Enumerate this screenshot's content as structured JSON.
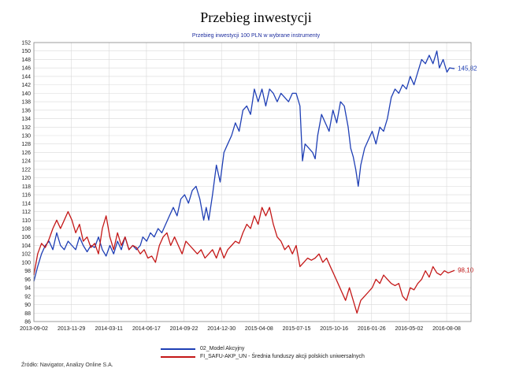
{
  "title": "Przebieg inwestycji",
  "subtitle": "Przebieg inwestycji 100 PLN w wybrane instrumenty",
  "source": "Źródło: Navigator, Analizy Online S.A.",
  "chart_data": {
    "type": "line",
    "x_tick_labels": [
      "2013-09-02",
      "2013-11-29",
      "2014-03-11",
      "2014-06-17",
      "2014-09-22",
      "2014-12-30",
      "2015-04-08",
      "2015-07-15",
      "2015-10-16",
      "2016-01-26",
      "2016-05-02",
      "2016-08-08"
    ],
    "ylim": [
      86,
      152
    ],
    "y_ticks": [
      86,
      88,
      90,
      92,
      94,
      96,
      98,
      100,
      102,
      104,
      106,
      108,
      110,
      112,
      114,
      116,
      118,
      120,
      122,
      124,
      126,
      128,
      130,
      132,
      134,
      136,
      138,
      140,
      142,
      144,
      146,
      148,
      150,
      152
    ],
    "grid": true,
    "legend_position": "bottom",
    "series": [
      {
        "name": "02_Model Akcyjny",
        "color": "#1f3fb5",
        "end_label": "145,82",
        "values": [
          [
            0,
            95.5
          ],
          [
            3,
            99
          ],
          [
            6,
            102
          ],
          [
            9,
            104
          ],
          [
            12,
            105
          ],
          [
            15,
            103
          ],
          [
            18,
            107
          ],
          [
            21,
            104
          ],
          [
            24,
            103
          ],
          [
            27,
            105
          ],
          [
            30,
            104
          ],
          [
            33,
            103
          ],
          [
            36,
            106
          ],
          [
            39,
            104
          ],
          [
            42,
            102.5
          ],
          [
            45,
            104
          ],
          [
            48,
            103.5
          ],
          [
            51,
            106
          ],
          [
            54,
            103
          ],
          [
            57,
            101.5
          ],
          [
            60,
            104
          ],
          [
            63,
            102
          ],
          [
            66,
            105
          ],
          [
            69,
            103
          ],
          [
            72,
            106
          ],
          [
            75,
            103
          ],
          [
            78,
            104
          ],
          [
            81,
            103
          ],
          [
            84,
            104
          ],
          [
            86,
            106
          ],
          [
            89,
            105
          ],
          [
            92,
            107
          ],
          [
            95,
            106
          ],
          [
            98,
            108
          ],
          [
            101,
            107
          ],
          [
            104,
            109
          ],
          [
            107,
            111
          ],
          [
            110,
            113
          ],
          [
            113,
            111
          ],
          [
            116,
            115
          ],
          [
            119,
            116
          ],
          [
            122,
            114
          ],
          [
            125,
            117
          ],
          [
            128,
            118
          ],
          [
            131,
            115
          ],
          [
            134,
            110
          ],
          [
            136,
            113
          ],
          [
            138,
            110
          ],
          [
            141,
            116
          ],
          [
            144,
            123
          ],
          [
            147,
            119
          ],
          [
            150,
            126
          ],
          [
            153,
            128
          ],
          [
            156,
            130
          ],
          [
            159,
            133
          ],
          [
            162,
            131
          ],
          [
            165,
            136
          ],
          [
            168,
            137
          ],
          [
            171,
            135
          ],
          [
            174,
            141
          ],
          [
            177,
            138
          ],
          [
            180,
            141
          ],
          [
            183,
            137
          ],
          [
            186,
            141
          ],
          [
            189,
            140
          ],
          [
            192,
            138
          ],
          [
            195,
            140
          ],
          [
            198,
            139
          ],
          [
            201,
            138
          ],
          [
            204,
            140
          ],
          [
            207,
            140
          ],
          [
            210,
            137
          ],
          [
            212,
            124
          ],
          [
            214,
            128
          ],
          [
            217,
            127
          ],
          [
            220,
            126
          ],
          [
            222,
            124.5
          ],
          [
            224,
            130
          ],
          [
            227,
            135
          ],
          [
            230,
            133
          ],
          [
            233,
            131
          ],
          [
            236,
            136
          ],
          [
            239,
            133
          ],
          [
            242,
            138
          ],
          [
            245,
            137
          ],
          [
            248,
            132
          ],
          [
            250,
            127
          ],
          [
            252,
            125
          ],
          [
            254,
            122
          ],
          [
            256,
            118
          ],
          [
            258,
            123
          ],
          [
            261,
            127
          ],
          [
            264,
            129
          ],
          [
            267,
            131
          ],
          [
            270,
            128
          ],
          [
            273,
            132
          ],
          [
            276,
            131
          ],
          [
            279,
            134
          ],
          [
            282,
            139
          ],
          [
            285,
            141
          ],
          [
            288,
            140
          ],
          [
            291,
            142
          ],
          [
            294,
            141
          ],
          [
            297,
            144
          ],
          [
            300,
            142
          ],
          [
            303,
            145
          ],
          [
            306,
            148
          ],
          [
            309,
            147
          ],
          [
            312,
            149
          ],
          [
            315,
            147
          ],
          [
            318,
            150
          ],
          [
            320,
            146
          ],
          [
            323,
            148
          ],
          [
            326,
            145
          ],
          [
            328,
            146
          ],
          [
            332,
            145.82
          ]
        ]
      },
      {
        "name": "FI_SAFU-AKP_UN - Średnia funduszy akcji polskich uniwersalnych",
        "color": "#c41818",
        "end_label": "98,10",
        "values": [
          [
            0,
            97
          ],
          [
            3,
            102
          ],
          [
            6,
            104.5
          ],
          [
            9,
            103.5
          ],
          [
            12,
            105.5
          ],
          [
            15,
            108
          ],
          [
            18,
            110
          ],
          [
            21,
            108
          ],
          [
            24,
            110
          ],
          [
            27,
            112
          ],
          [
            30,
            110
          ],
          [
            33,
            107
          ],
          [
            36,
            109
          ],
          [
            39,
            105
          ],
          [
            42,
            106
          ],
          [
            45,
            103.5
          ],
          [
            48,
            104.5
          ],
          [
            51,
            102
          ],
          [
            54,
            108
          ],
          [
            57,
            111
          ],
          [
            60,
            106
          ],
          [
            63,
            103
          ],
          [
            66,
            107
          ],
          [
            69,
            104
          ],
          [
            72,
            106
          ],
          [
            75,
            103
          ],
          [
            78,
            104
          ],
          [
            81,
            103.5
          ],
          [
            84,
            102
          ],
          [
            87,
            103
          ],
          [
            90,
            101
          ],
          [
            93,
            101.5
          ],
          [
            96,
            100
          ],
          [
            99,
            104
          ],
          [
            102,
            106
          ],
          [
            105,
            107
          ],
          [
            108,
            104
          ],
          [
            111,
            106
          ],
          [
            114,
            104
          ],
          [
            117,
            102
          ],
          [
            120,
            105
          ],
          [
            123,
            104
          ],
          [
            126,
            103
          ],
          [
            129,
            102
          ],
          [
            132,
            103
          ],
          [
            135,
            101
          ],
          [
            138,
            102
          ],
          [
            141,
            103
          ],
          [
            144,
            101
          ],
          [
            147,
            103.5
          ],
          [
            150,
            101
          ],
          [
            153,
            103
          ],
          [
            156,
            104
          ],
          [
            159,
            105
          ],
          [
            162,
            104.5
          ],
          [
            165,
            107
          ],
          [
            168,
            109
          ],
          [
            171,
            108
          ],
          [
            174,
            111
          ],
          [
            177,
            109
          ],
          [
            180,
            113
          ],
          [
            183,
            111
          ],
          [
            186,
            113
          ],
          [
            189,
            109
          ],
          [
            192,
            106
          ],
          [
            195,
            105
          ],
          [
            198,
            103
          ],
          [
            201,
            104
          ],
          [
            204,
            102
          ],
          [
            207,
            104
          ],
          [
            210,
            99
          ],
          [
            213,
            100
          ],
          [
            216,
            101
          ],
          [
            219,
            100.5
          ],
          [
            222,
            101
          ],
          [
            225,
            102
          ],
          [
            228,
            100
          ],
          [
            231,
            101
          ],
          [
            234,
            99
          ],
          [
            237,
            97
          ],
          [
            240,
            95
          ],
          [
            243,
            93
          ],
          [
            246,
            91
          ],
          [
            249,
            94
          ],
          [
            252,
            91
          ],
          [
            255,
            88
          ],
          [
            258,
            91
          ],
          [
            261,
            92
          ],
          [
            264,
            93
          ],
          [
            267,
            94
          ],
          [
            270,
            96
          ],
          [
            273,
            95
          ],
          [
            276,
            97
          ],
          [
            279,
            96
          ],
          [
            282,
            95
          ],
          [
            285,
            94.5
          ],
          [
            288,
            95
          ],
          [
            291,
            92
          ],
          [
            294,
            91
          ],
          [
            297,
            94
          ],
          [
            300,
            93.5
          ],
          [
            303,
            95
          ],
          [
            306,
            96
          ],
          [
            309,
            98
          ],
          [
            312,
            96.5
          ],
          [
            315,
            99
          ],
          [
            318,
            97.5
          ],
          [
            321,
            97
          ],
          [
            324,
            98
          ],
          [
            327,
            97.5
          ],
          [
            332,
            98.1
          ]
        ]
      }
    ]
  }
}
